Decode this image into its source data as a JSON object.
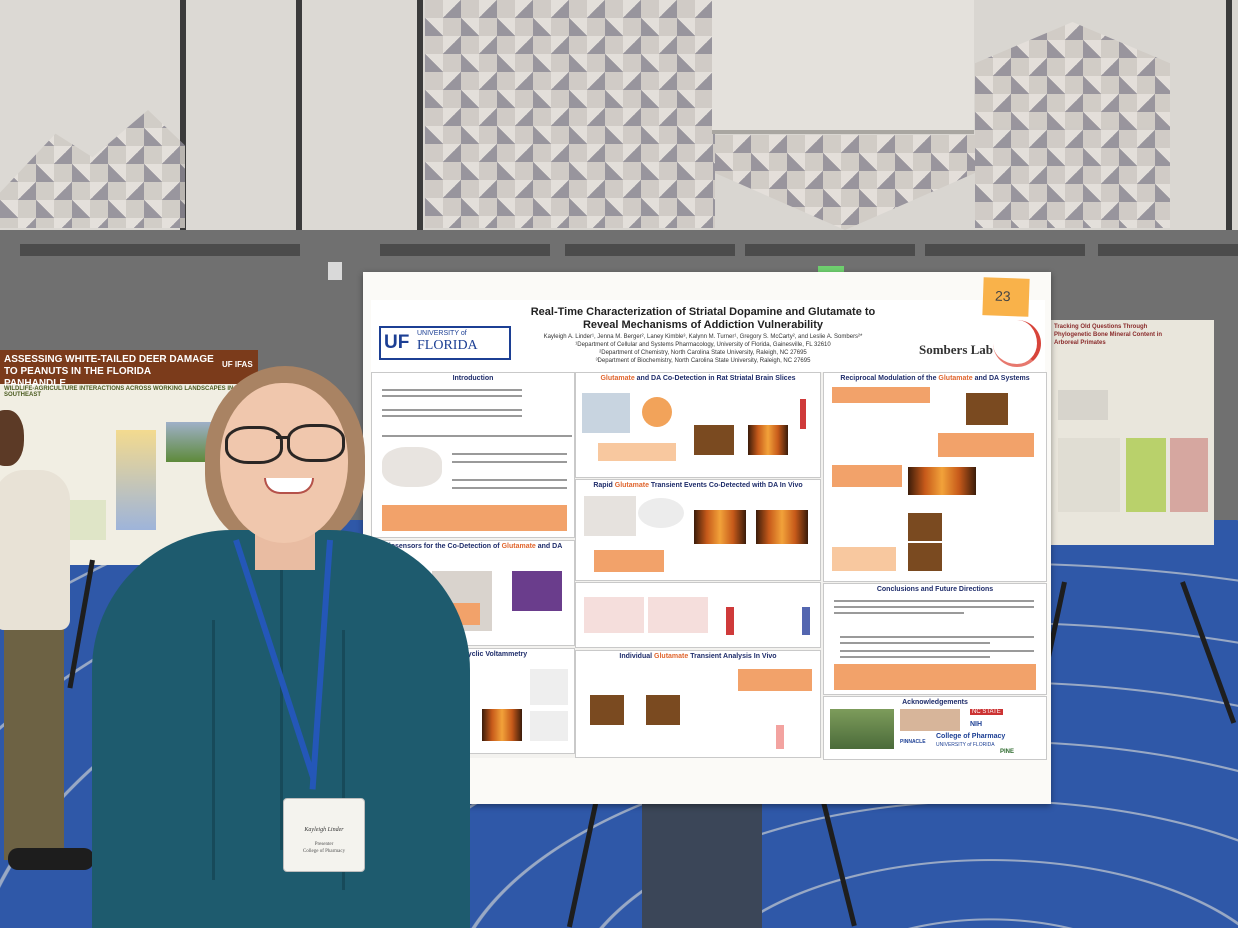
{
  "main_poster": {
    "title": "Real-Time Characterization of Striatal Dopamine and Glutamate to Reveal Mechanisms of Addiction Vulnerability",
    "authors": "Kayleigh A. Linder¹, Jenna M. Berger², Laney Kimble³, Kalynn M. Turner¹, Gregory S. McCarty², and Leslie A. Sombers²*",
    "affiliation_1": "¹Department of Cellular and Systems Pharmacology, University of Florida, Gainesville, FL 32610",
    "affiliation_2": "²Department of Chemistry, North Carolina State University, Raleigh, NC 27695",
    "affiliation_3": "³Department of Biochemistry, North Carolina State University, Raleigh, NC 27695",
    "logo_uf": "UF",
    "logo_university_of": "UNIVERSITY of",
    "logo_florida": "FLORIDA",
    "lab_name": "Sombers Lab",
    "sticky_note": "23",
    "sections": {
      "introduction": "Introduction",
      "co_detection_prefix": "",
      "co_detection_glu": "Glutamate",
      "co_detection_suffix": " and DA Co-Detection in Rat Striatal Brain Slices",
      "reciprocal_prefix": "Reciprocal Modulation of the ",
      "reciprocal_glu": "Glutamate",
      "reciprocal_suffix": " and DA Systems",
      "biosensors_prefix": "Biosensors for the Co-Detection of ",
      "biosensors_glu": "Glutamate",
      "biosensors_suffix": " and DA",
      "rapid_prefix": "Rapid ",
      "rapid_glu": "Glutamate",
      "rapid_suffix": " Transient Events Co-Detected with DA In Vivo",
      "fscv": "th Fast-Scan Cyclic Voltammetry",
      "individual_prefix": "Individual ",
      "individual_glu": "Glutamate",
      "individual_suffix": " Transient Analysis In Vivo",
      "conclusions": "Conclusions and Future Directions",
      "acknowledgements": "Acknowledgements",
      "college": "College of Pharmacy",
      "college_sub": "UNIVERSITY of FLORIDA",
      "pinnacle": "PINNACLE",
      "pine": "PINE",
      "nih": "NIH",
      "nc_state": "NC STATE"
    }
  },
  "left_poster": {
    "title": "ASSESSING WHITE-TAILED DEER DAMAGE TO PEANUTS IN THE FLORIDA PANHANDLE",
    "logo": "UF IFAS",
    "subtitle": "WILDLIFE-AGRICULTURE INTERACTIONS ACROSS WORKING LANDSCAPES IN THE SOUTHEAST"
  },
  "right_poster": {
    "title": "Tracking Old Questions Through Phylogenetic Bone Mineral Content in Arboreal Primates"
  },
  "badge": {
    "name": "Kayleigh Linder",
    "role_line1": "Presenter",
    "role_line2": "College of Pharmacy"
  },
  "colors": {
    "uf_blue": "#1c3f94",
    "glutamate_orange": "#e0662f",
    "carpet_blue": "#2f58a8",
    "shirt_teal": "#1e5b6e"
  }
}
